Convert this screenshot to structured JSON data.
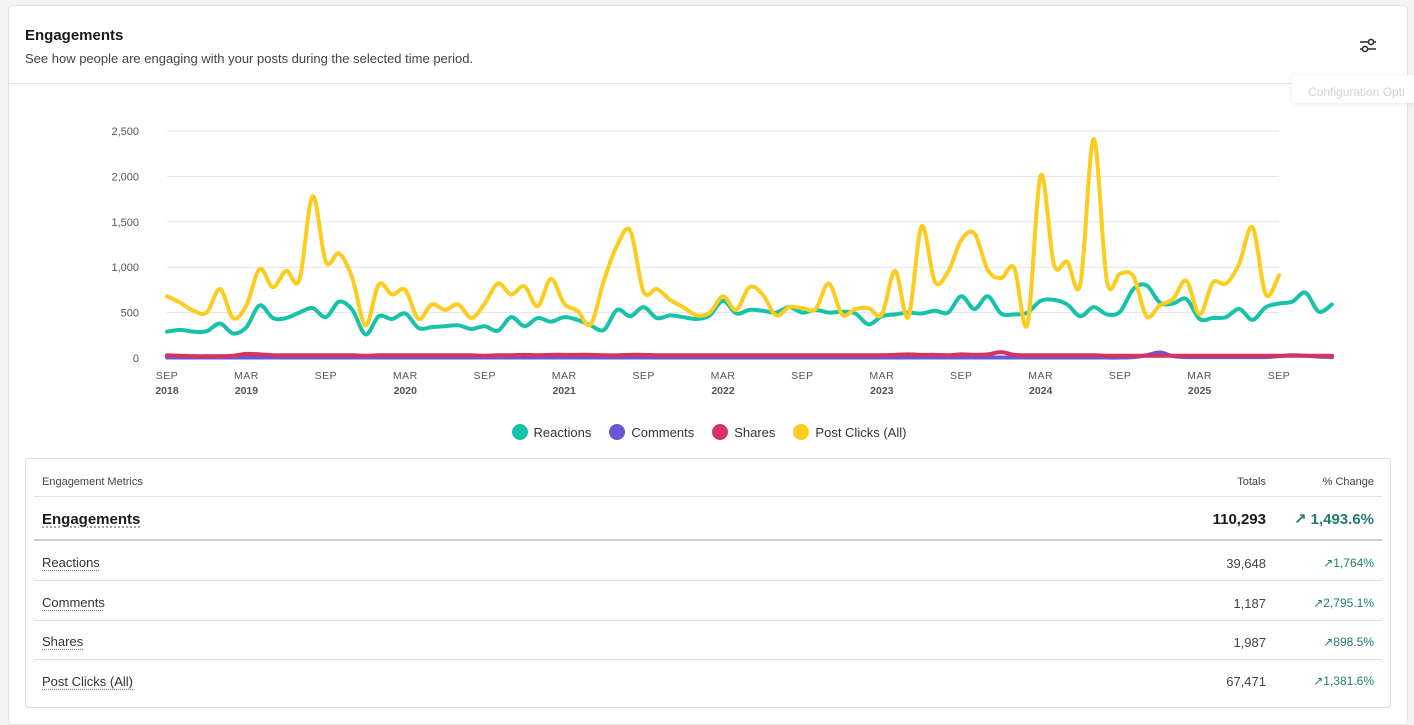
{
  "header": {
    "title": "Engagements",
    "subtitle": "See how people are engaging with your posts during the selected time period.",
    "config_tooltip": "Configuration Opti",
    "config_icon": "sliders-icon"
  },
  "colors": {
    "reactions": "#17c3a8",
    "comments": "#6b57d6",
    "shares": "#d4345f",
    "post_clicks": "#fccc1e"
  },
  "chart_data": {
    "type": "line",
    "ylim": [
      0,
      2500
    ],
    "yticks": [
      "2,500",
      "2,000",
      "1,500",
      "1,000",
      "500",
      "0"
    ],
    "ytick_values": [
      2500,
      2000,
      1500,
      1000,
      500,
      0
    ],
    "xlim": [
      "2018-09",
      "2025-09"
    ],
    "xticks": [
      {
        "month": "SEP",
        "year": "2018",
        "pos": 0
      },
      {
        "month": "MAR",
        "year": "2019",
        "pos": 6
      },
      {
        "month": "SEP",
        "year": "",
        "pos": 12
      },
      {
        "month": "MAR",
        "year": "2020",
        "pos": 18
      },
      {
        "month": "SEP",
        "year": "",
        "pos": 24
      },
      {
        "month": "MAR",
        "year": "2021",
        "pos": 30
      },
      {
        "month": "SEP",
        "year": "",
        "pos": 36
      },
      {
        "month": "MAR",
        "year": "2022",
        "pos": 42
      },
      {
        "month": "SEP",
        "year": "",
        "pos": 48
      },
      {
        "month": "MAR",
        "year": "2023",
        "pos": 54
      },
      {
        "month": "SEP",
        "year": "",
        "pos": 60
      },
      {
        "month": "MAR",
        "year": "2024",
        "pos": 66
      },
      {
        "month": "SEP",
        "year": "",
        "pos": 72
      },
      {
        "month": "MAR",
        "year": "2025",
        "pos": 78
      },
      {
        "month": "SEP",
        "year": "",
        "pos": 84
      }
    ],
    "grid": true,
    "legend_position": "bottom-center",
    "series": [
      {
        "name": "Reactions",
        "color": "#17c3a8",
        "values": [
          290,
          310,
          290,
          295,
          380,
          270,
          340,
          580,
          440,
          440,
          500,
          550,
          450,
          620,
          530,
          260,
          460,
          430,
          490,
          330,
          340,
          350,
          360,
          320,
          350,
          300,
          450,
          350,
          440,
          400,
          450,
          420,
          360,
          310,
          530,
          460,
          560,
          440,
          470,
          450,
          430,
          470,
          630,
          490,
          530,
          520,
          500,
          560,
          500,
          530,
          500,
          510,
          490,
          370,
          460,
          480,
          500,
          490,
          520,
          500,
          680,
          540,
          680,
          490,
          480,
          500,
          630,
          640,
          590,
          460,
          560,
          480,
          510,
          760,
          800,
          610,
          600,
          650,
          430,
          440,
          450,
          540,
          420,
          560,
          600,
          620,
          720,
          510,
          590
        ]
      },
      {
        "name": "Comments",
        "color": "#6b57d6",
        "values": [
          5,
          5,
          5,
          5,
          5,
          5,
          5,
          5,
          5,
          5,
          5,
          5,
          5,
          5,
          5,
          5,
          5,
          5,
          5,
          5,
          5,
          5,
          5,
          5,
          5,
          5,
          5,
          5,
          5,
          5,
          5,
          5,
          5,
          5,
          5,
          5,
          5,
          5,
          5,
          5,
          5,
          5,
          5,
          5,
          5,
          5,
          5,
          5,
          5,
          5,
          5,
          5,
          5,
          5,
          5,
          5,
          5,
          5,
          5,
          5,
          5,
          5,
          5,
          5,
          5,
          5,
          5,
          5,
          5,
          5,
          5,
          5,
          5,
          10,
          30,
          60,
          20,
          10,
          10,
          10,
          10,
          10,
          10,
          10,
          20,
          30,
          25,
          15,
          10
        ]
      },
      {
        "name": "Shares",
        "color": "#d4345f",
        "values": [
          30,
          25,
          20,
          20,
          20,
          25,
          45,
          40,
          30,
          30,
          30,
          30,
          30,
          30,
          30,
          25,
          30,
          30,
          30,
          30,
          30,
          30,
          30,
          30,
          25,
          30,
          30,
          35,
          30,
          35,
          35,
          35,
          35,
          30,
          30,
          35,
          35,
          30,
          30,
          30,
          30,
          30,
          30,
          30,
          30,
          30,
          30,
          30,
          30,
          30,
          30,
          30,
          30,
          30,
          30,
          35,
          40,
          35,
          35,
          30,
          40,
          35,
          40,
          65,
          35,
          30,
          30,
          30,
          30,
          30,
          30,
          25,
          25,
          25,
          25,
          25,
          25,
          25,
          25,
          25,
          25,
          25,
          25,
          25,
          25,
          25,
          25,
          25,
          25
        ]
      },
      {
        "name": "Post Clicks (All)",
        "color": "#fccc1e",
        "values": [
          680,
          610,
          520,
          500,
          760,
          440,
          580,
          980,
          780,
          960,
          860,
          1780,
          1060,
          1150,
          880,
          360,
          810,
          700,
          750,
          430,
          590,
          530,
          590,
          440,
          600,
          820,
          700,
          790,
          570,
          870,
          600,
          520,
          370,
          850,
          1240,
          1400,
          730,
          760,
          640,
          560,
          470,
          500,
          680,
          530,
          780,
          700,
          470,
          560,
          550,
          540,
          820,
          480,
          540,
          550,
          480,
          960,
          450,
          1450,
          840,
          950,
          1300,
          1370,
          970,
          880,
          990,
          370,
          2010,
          1030,
          1060,
          820,
          2410,
          850,
          930,
          900,
          460,
          580,
          650,
          850,
          480,
          830,
          820,
          1040,
          1440,
          700,
          910
        ]
      }
    ]
  },
  "legend": [
    {
      "label": "Reactions",
      "color": "#17c3a8"
    },
    {
      "label": "Comments",
      "color": "#6b57d6"
    },
    {
      "label": "Shares",
      "color": "#d4345f"
    },
    {
      "label": "Post Clicks (All)",
      "color": "#fccc1e"
    }
  ],
  "table": {
    "header": {
      "name": "Engagement Metrics",
      "total": "Totals",
      "change": "% Change"
    },
    "main": {
      "name": "Engagements",
      "total": "110,293",
      "change": "↗ 1,493.6%"
    },
    "rows": [
      {
        "name": "Reactions",
        "total": "39,648",
        "change": "↗1,764%"
      },
      {
        "name": "Comments",
        "total": "1,187",
        "change": "↗2,795.1%"
      },
      {
        "name": "Shares",
        "total": "1,987",
        "change": "↗898.5%"
      },
      {
        "name": "Post Clicks (All)",
        "total": "67,471",
        "change": "↗1,381.6%"
      }
    ]
  }
}
